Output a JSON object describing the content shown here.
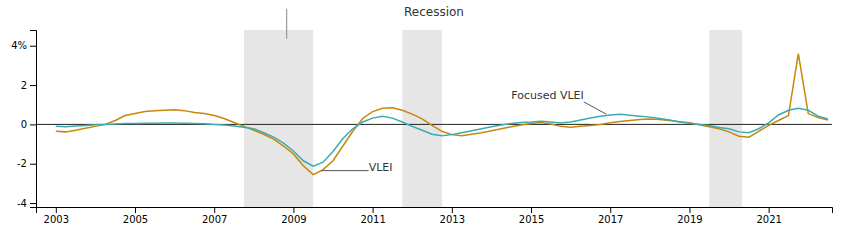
{
  "chart_data": {
    "type": "line",
    "title": "Recession",
    "xlim": [
      2002.5,
      2022.6
    ],
    "ylim": [
      -4.2,
      4.8
    ],
    "xticks": [
      2003,
      2005,
      2007,
      2009,
      2011,
      2013,
      2015,
      2017,
      2019,
      2021
    ],
    "yticks": [
      -4,
      -2,
      0,
      2,
      {
        "value": 4,
        "label": "4%"
      }
    ],
    "grid": false,
    "recession_bands": [
      [
        2007.75,
        2009.5
      ],
      [
        2011.75,
        2012.75
      ],
      [
        2019.5,
        2020.33
      ]
    ],
    "zero_line": 0,
    "title_line_x": 2008.83,
    "x": [
      2003.0,
      2003.25,
      2003.5,
      2003.75,
      2004.0,
      2004.25,
      2004.5,
      2004.75,
      2005.0,
      2005.25,
      2005.5,
      2005.75,
      2006.0,
      2006.25,
      2006.5,
      2006.75,
      2007.0,
      2007.25,
      2007.5,
      2007.75,
      2008.0,
      2008.25,
      2008.5,
      2008.75,
      2009.0,
      2009.25,
      2009.5,
      2009.75,
      2010.0,
      2010.25,
      2010.5,
      2010.75,
      2011.0,
      2011.25,
      2011.5,
      2011.75,
      2012.0,
      2012.25,
      2012.5,
      2012.75,
      2013.0,
      2013.25,
      2013.5,
      2013.75,
      2014.0,
      2014.25,
      2014.5,
      2014.75,
      2015.0,
      2015.25,
      2015.5,
      2015.75,
      2016.0,
      2016.25,
      2016.5,
      2016.75,
      2017.0,
      2017.25,
      2017.5,
      2017.75,
      2018.0,
      2018.25,
      2018.5,
      2018.75,
      2019.0,
      2019.25,
      2019.5,
      2019.75,
      2020.0,
      2020.25,
      2020.5,
      2020.75,
      2021.0,
      2021.25,
      2021.5,
      2021.75,
      2022.0,
      2022.25,
      2022.5
    ],
    "series": [
      {
        "name": "VLEI",
        "color": "#C8860A",
        "annotation_xy": [
          2009.7,
          -2.35
        ],
        "annotation_text_xy": [
          2010.9,
          -2.2
        ],
        "values": [
          -0.35,
          -0.38,
          -0.3,
          -0.2,
          -0.1,
          0.0,
          0.2,
          0.45,
          0.55,
          0.65,
          0.7,
          0.72,
          0.75,
          0.7,
          0.6,
          0.55,
          0.45,
          0.3,
          0.1,
          -0.1,
          -0.3,
          -0.5,
          -0.75,
          -1.1,
          -1.5,
          -2.1,
          -2.55,
          -2.3,
          -1.85,
          -1.1,
          -0.35,
          0.3,
          0.65,
          0.82,
          0.85,
          0.72,
          0.52,
          0.28,
          -0.05,
          -0.35,
          -0.52,
          -0.58,
          -0.5,
          -0.42,
          -0.32,
          -0.22,
          -0.12,
          -0.03,
          0.05,
          0.1,
          0.02,
          -0.1,
          -0.15,
          -0.1,
          -0.05,
          0.0,
          0.08,
          0.15,
          0.2,
          0.25,
          0.28,
          0.25,
          0.2,
          0.14,
          0.08,
          -0.02,
          -0.12,
          -0.22,
          -0.38,
          -0.6,
          -0.65,
          -0.35,
          -0.05,
          0.2,
          0.45,
          3.6,
          0.55,
          0.35,
          0.22
        ]
      },
      {
        "name": "Focused VLEI",
        "color": "#3AACAD",
        "annotation_xy": [
          2016.9,
          0.52
        ],
        "annotation_text_xy": [
          2014.5,
          1.45
        ],
        "values": [
          -0.1,
          -0.12,
          -0.08,
          -0.05,
          -0.02,
          0.0,
          0.02,
          0.04,
          0.05,
          0.06,
          0.06,
          0.07,
          0.07,
          0.06,
          0.05,
          0.03,
          0.0,
          -0.03,
          -0.08,
          -0.14,
          -0.22,
          -0.42,
          -0.65,
          -0.95,
          -1.35,
          -1.85,
          -2.12,
          -1.92,
          -1.38,
          -0.72,
          -0.22,
          0.12,
          0.32,
          0.42,
          0.32,
          0.12,
          -0.1,
          -0.3,
          -0.5,
          -0.58,
          -0.52,
          -0.42,
          -0.32,
          -0.22,
          -0.12,
          -0.03,
          0.05,
          0.1,
          0.12,
          0.16,
          0.12,
          0.07,
          0.12,
          0.22,
          0.32,
          0.42,
          0.48,
          0.52,
          0.47,
          0.42,
          0.37,
          0.3,
          0.22,
          0.12,
          0.06,
          0.0,
          -0.06,
          -0.16,
          -0.22,
          -0.38,
          -0.42,
          -0.22,
          0.08,
          0.48,
          0.72,
          0.82,
          0.72,
          0.42,
          0.27
        ]
      }
    ]
  }
}
